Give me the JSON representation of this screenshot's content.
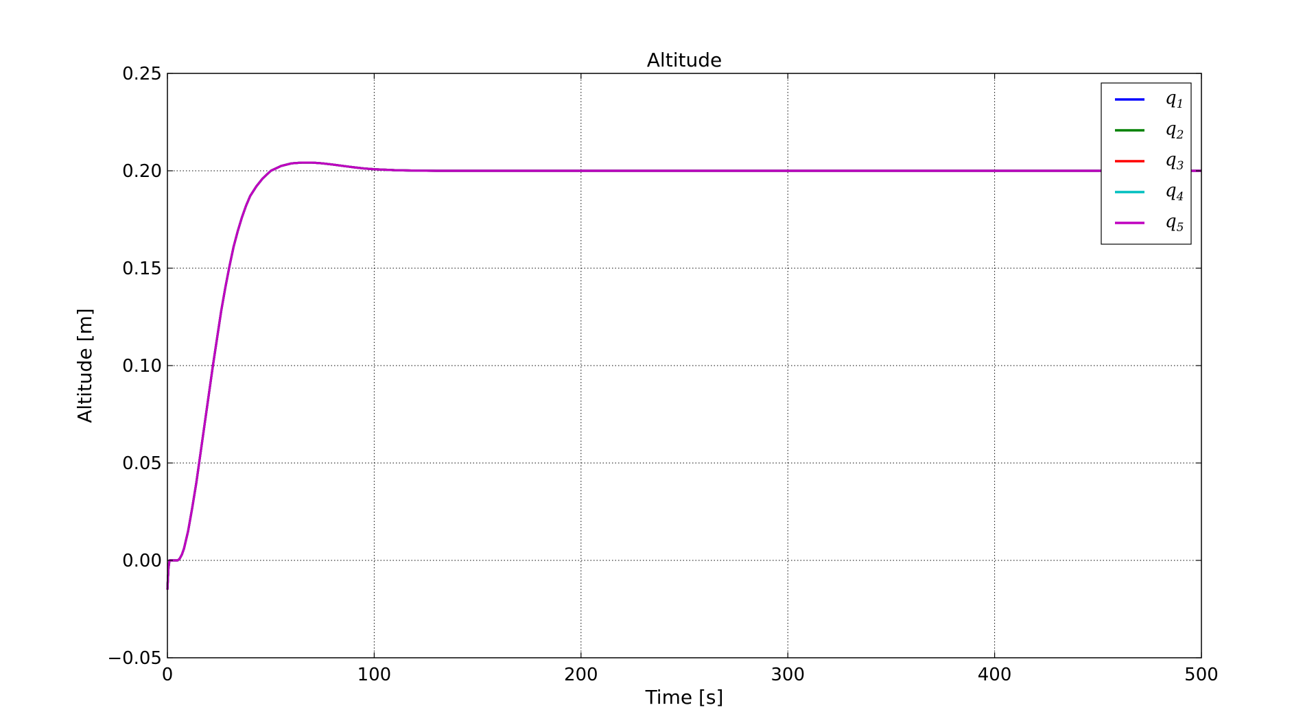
{
  "chart_data": {
    "type": "line",
    "title": "Altitude",
    "xlabel": "Time [s]",
    "ylabel": "Altitude [m]",
    "xlim": [
      0,
      500
    ],
    "ylim": [
      -0.05,
      0.25
    ],
    "xticks": [
      0,
      100,
      200,
      300,
      400,
      500
    ],
    "xtick_labels": [
      "0",
      "100",
      "200",
      "300",
      "400",
      "500"
    ],
    "yticks": [
      -0.05,
      0.0,
      0.05,
      0.1,
      0.15,
      0.2,
      0.25
    ],
    "ytick_labels": [
      "−0.05",
      "0.00",
      "0.05",
      "0.10",
      "0.15",
      "0.20",
      "0.25"
    ],
    "grid": true,
    "legend_position": "top-right",
    "x": [
      0,
      0.5,
      1,
      2,
      3,
      4,
      5,
      6,
      7,
      8,
      10,
      12,
      14,
      16,
      18,
      20,
      22,
      24,
      26,
      28,
      30,
      32,
      34,
      36,
      38,
      40,
      43,
      46,
      50,
      55,
      60,
      65,
      70,
      75,
      80,
      85,
      90,
      95,
      100,
      110,
      120,
      130,
      140,
      160,
      200,
      250,
      300,
      350,
      400,
      450,
      500
    ],
    "series": [
      {
        "name": "q",
        "subscript": "1",
        "color": "#0000ff",
        "values": [
          -0.015,
          -0.004,
          0.0,
          0.0,
          0.0,
          0.0,
          0.0,
          0.001,
          0.003,
          0.006,
          0.015,
          0.027,
          0.04,
          0.055,
          0.07,
          0.085,
          0.1,
          0.114,
          0.128,
          0.14,
          0.151,
          0.161,
          0.169,
          0.176,
          0.182,
          0.187,
          0.192,
          0.196,
          0.2,
          0.2025,
          0.2038,
          0.2042,
          0.2042,
          0.2038,
          0.2032,
          0.2025,
          0.2018,
          0.2012,
          0.2008,
          0.2003,
          0.2001,
          0.2,
          0.2,
          0.2,
          0.2,
          0.2,
          0.2,
          0.2,
          0.2,
          0.2,
          0.2
        ]
      },
      {
        "name": "q",
        "subscript": "2",
        "color": "#008000",
        "values": [
          -0.015,
          -0.004,
          0.0,
          0.0,
          0.0,
          0.0,
          0.0,
          0.001,
          0.003,
          0.006,
          0.015,
          0.027,
          0.04,
          0.055,
          0.07,
          0.085,
          0.1,
          0.114,
          0.128,
          0.14,
          0.151,
          0.161,
          0.169,
          0.176,
          0.182,
          0.187,
          0.192,
          0.196,
          0.2,
          0.2025,
          0.2038,
          0.2042,
          0.2042,
          0.2038,
          0.2032,
          0.2025,
          0.2018,
          0.2012,
          0.2008,
          0.2003,
          0.2001,
          0.2,
          0.2,
          0.2,
          0.2,
          0.2,
          0.2,
          0.2,
          0.2,
          0.2,
          0.2
        ]
      },
      {
        "name": "q",
        "subscript": "3",
        "color": "#ff0000",
        "values": [
          -0.015,
          -0.004,
          0.0,
          0.0,
          0.0,
          0.0,
          0.0,
          0.001,
          0.003,
          0.006,
          0.015,
          0.027,
          0.04,
          0.055,
          0.07,
          0.085,
          0.1,
          0.114,
          0.128,
          0.14,
          0.151,
          0.161,
          0.169,
          0.176,
          0.182,
          0.187,
          0.192,
          0.196,
          0.2,
          0.2025,
          0.2038,
          0.2042,
          0.2042,
          0.2038,
          0.2032,
          0.2025,
          0.2018,
          0.2012,
          0.2008,
          0.2003,
          0.2001,
          0.2,
          0.2,
          0.2,
          0.2,
          0.2,
          0.2,
          0.2,
          0.2,
          0.2,
          0.2
        ]
      },
      {
        "name": "q",
        "subscript": "4",
        "color": "#00bfbf",
        "values": [
          -0.015,
          -0.004,
          0.0,
          0.0,
          0.0,
          0.0,
          0.0,
          0.001,
          0.003,
          0.006,
          0.015,
          0.027,
          0.04,
          0.055,
          0.07,
          0.085,
          0.1,
          0.114,
          0.128,
          0.14,
          0.151,
          0.161,
          0.169,
          0.176,
          0.182,
          0.187,
          0.192,
          0.196,
          0.2,
          0.2025,
          0.2038,
          0.2042,
          0.2042,
          0.2038,
          0.2032,
          0.2025,
          0.2018,
          0.2012,
          0.2008,
          0.2003,
          0.2001,
          0.2,
          0.2,
          0.2,
          0.2,
          0.2,
          0.2,
          0.2,
          0.2,
          0.2,
          0.2
        ]
      },
      {
        "name": "q",
        "subscript": "5",
        "color": "#bf00bf",
        "values": [
          -0.015,
          -0.004,
          0.0,
          0.0,
          0.0,
          0.0,
          0.0,
          0.001,
          0.003,
          0.006,
          0.015,
          0.027,
          0.04,
          0.055,
          0.07,
          0.085,
          0.1,
          0.114,
          0.128,
          0.14,
          0.151,
          0.161,
          0.169,
          0.176,
          0.182,
          0.187,
          0.192,
          0.196,
          0.2,
          0.2025,
          0.2038,
          0.2042,
          0.2042,
          0.2038,
          0.2032,
          0.2025,
          0.2018,
          0.2012,
          0.2008,
          0.2003,
          0.2001,
          0.2,
          0.2,
          0.2,
          0.2,
          0.2,
          0.2,
          0.2,
          0.2,
          0.2,
          0.2
        ]
      }
    ]
  }
}
